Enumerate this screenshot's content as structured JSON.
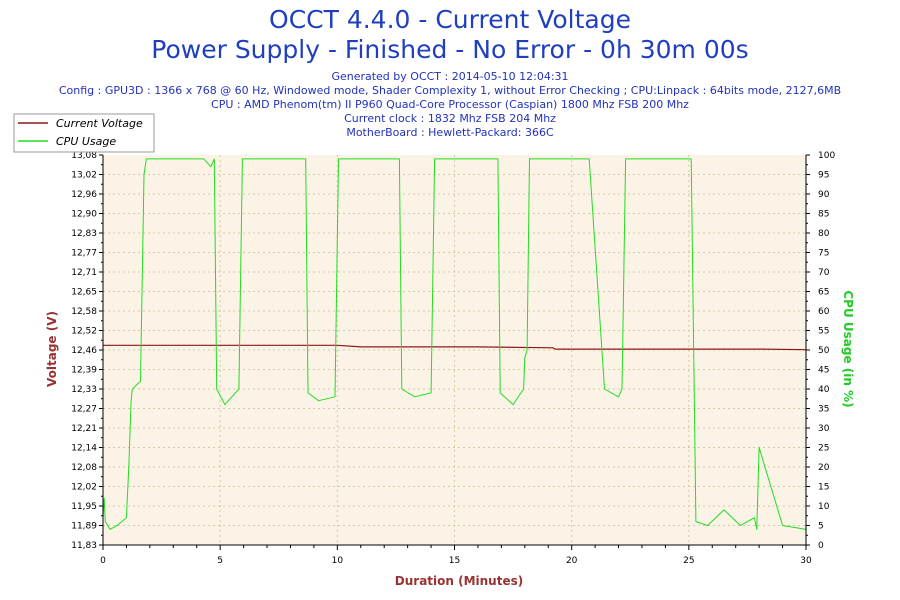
{
  "header": {
    "title": "OCCT 4.4.0 - Current Voltage",
    "subtitle": "Power Supply - Finished - No Error - 0h 30m 00s",
    "info_lines": [
      "Generated by OCCT : 2014-05-10 12:04:31",
      "Config : GPU3D : 1366 x 768 @ 60 Hz, Windowed mode, Shader Complexity 1, without Error Checking ; CPU:Linpack : 64bits mode, 2127,6MB",
      "CPU : AMD Phenom(tm) II P960 Quad-Core Processor (Caspian) 1800 Mhz FSB 200 Mhz",
      "Current clock : 1832 Mhz FSB 204 Mhz",
      "MotherBoard : Hewlett-Packard: 366C"
    ]
  },
  "colors": {
    "title": "#1f3fbf",
    "info": "#2233bb",
    "voltage": "#8b1a1a",
    "cpu": "#22dd22",
    "plot_bg": "#fbf3e6",
    "grid": "#d8c8a8"
  },
  "chart_data": {
    "type": "line",
    "xlabel": "Duration (Minutes)",
    "ylabel_left": "Voltage (V)",
    "ylabel_right": "CPU Usage (in %)",
    "xlim": [
      0,
      30
    ],
    "ylim_left": [
      11.83,
      13.08
    ],
    "ylim_right": [
      0,
      100
    ],
    "x_ticks": [
      "0",
      "5",
      "10",
      "15",
      "20",
      "25",
      "30"
    ],
    "y_left_ticks": [
      "11,83",
      "11,89",
      "11,95",
      "12,02",
      "12,08",
      "12,14",
      "12,21",
      "12,27",
      "12,33",
      "12,39",
      "12,46",
      "12,52",
      "12,58",
      "12,65",
      "12,71",
      "12,77",
      "12,83",
      "12,90",
      "12,96",
      "13,02",
      "13,08"
    ],
    "y_right_ticks": [
      "0",
      "5",
      "10",
      "15",
      "20",
      "25",
      "30",
      "35",
      "40",
      "45",
      "50",
      "55",
      "60",
      "65",
      "70",
      "75",
      "80",
      "85",
      "90",
      "95",
      "100"
    ],
    "grid": true,
    "legend_position": "top-left",
    "series": [
      {
        "name": "Current Voltage",
        "axis": "left",
        "x": [
          0,
          2,
          5,
          8,
          10,
          11,
          13,
          16,
          19.2,
          19.3,
          22,
          25,
          28,
          30
        ],
        "values": [
          12.47,
          12.47,
          12.47,
          12.47,
          12.47,
          12.465,
          12.465,
          12.465,
          12.462,
          12.458,
          12.458,
          12.458,
          12.458,
          12.456
        ]
      },
      {
        "name": "CPU Usage",
        "axis": "right",
        "x": [
          0,
          0.05,
          0.1,
          0.3,
          0.6,
          1.0,
          1.1,
          1.2,
          1.25,
          1.6,
          1.75,
          1.85,
          2.5,
          3.5,
          4.3,
          4.6,
          4.75,
          4.85,
          5.2,
          5.8,
          5.95,
          6.1,
          7.5,
          8.5,
          8.65,
          8.75,
          9.2,
          9.9,
          10.05,
          10.2,
          11.5,
          12.5,
          12.65,
          12.75,
          13.3,
          14.0,
          14.15,
          14.3,
          15.5,
          16.7,
          16.85,
          16.95,
          17.5,
          17.95,
          18.0,
          18.1,
          18.2,
          18.35,
          18.45,
          19.5,
          20.5,
          20.65,
          20.75,
          21.4,
          22.0,
          22.15,
          22.3,
          23.5,
          24.8,
          24.9,
          24.95,
          25.0,
          25.1,
          25.3,
          25.8,
          26.5,
          27.2,
          27.5,
          27.8,
          27.9,
          28.0,
          29.0,
          30.0
        ],
        "values": [
          7,
          12,
          6,
          4,
          5,
          7,
          20,
          37,
          40,
          42,
          95,
          99,
          99,
          99,
          99,
          97,
          99,
          40,
          36,
          40,
          99,
          99,
          99,
          99,
          99,
          39,
          37,
          38,
          99,
          99,
          99,
          99,
          99,
          40,
          38,
          39,
          99,
          99,
          99,
          99,
          99,
          39,
          36,
          40,
          48,
          50,
          99,
          99,
          99,
          99,
          99,
          99,
          99,
          40,
          38,
          40,
          99,
          99,
          99,
          99,
          99,
          99,
          99,
          6,
          5,
          9,
          5,
          6,
          7,
          4,
          25,
          5,
          4
        ]
      }
    ]
  }
}
